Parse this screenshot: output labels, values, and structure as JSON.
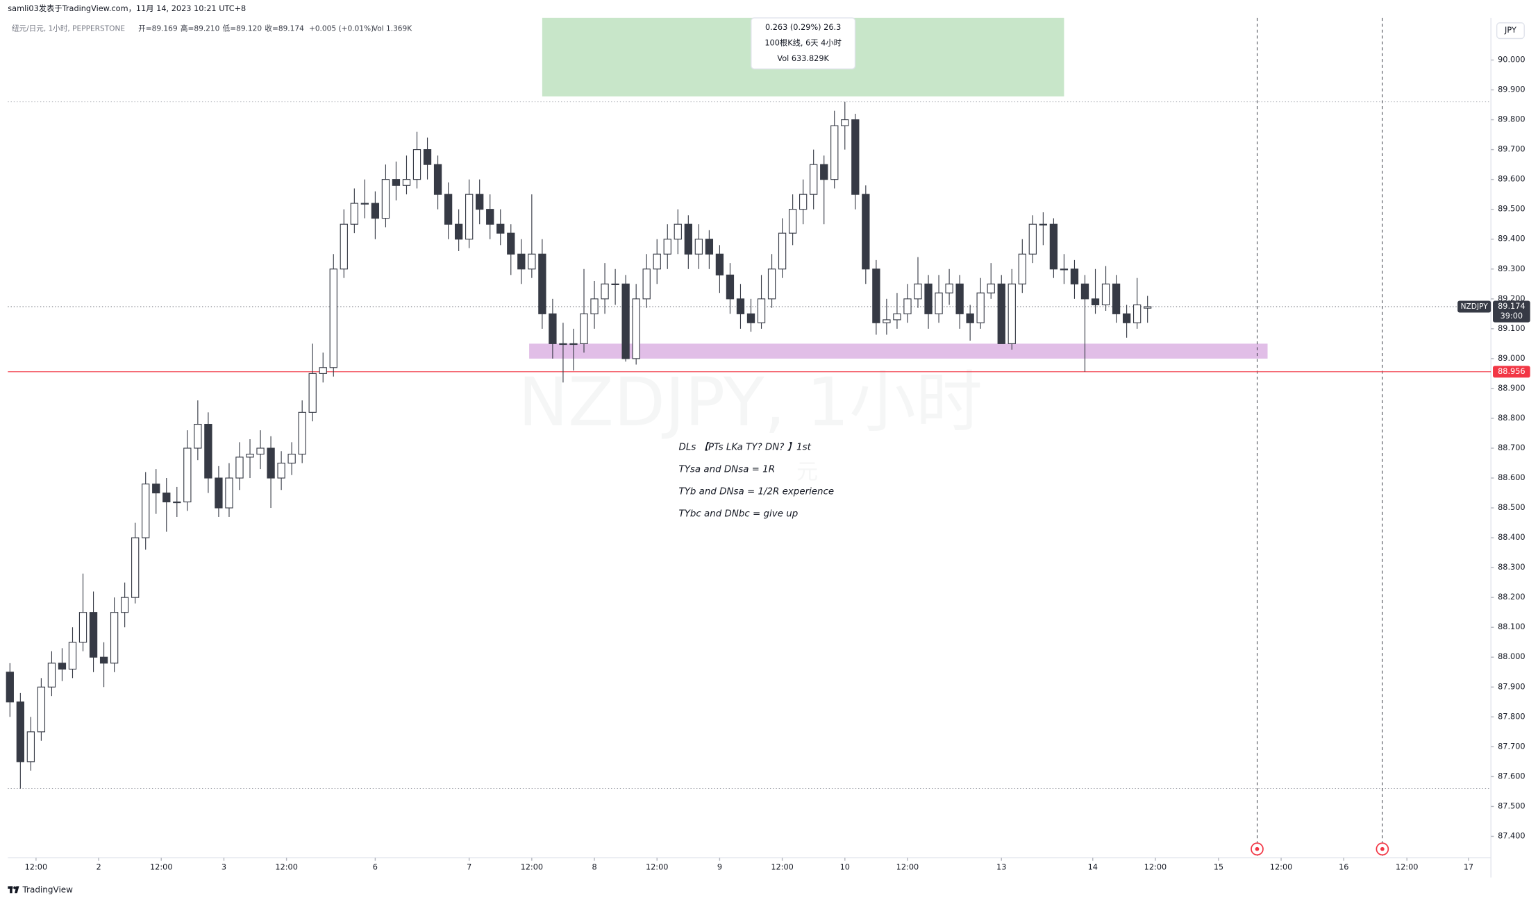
{
  "header": {
    "publisher": "samli03发表于TradingView.com，11月 14, 2023 10:21 UTC+8",
    "symbol_line": "纽元/日元, 1小时, PEPPERSTONE",
    "open_label": "开=89.169",
    "high_label": "高=89.210",
    "low_label": "低=89.120",
    "close_label": "收=89.174",
    "change": "+0.005 (+0.01%)",
    "volume": "Vol 1.369K"
  },
  "chart_data": {
    "type": "candlestick",
    "watermark": "NZDJPY, 1小时",
    "watermark_sub": "元",
    "currency": "JPY",
    "symbol": "NZDJPY",
    "countdown": "39:00",
    "bull_color": "#ffffff",
    "bear_color": "#363a45",
    "x": [
      0,
      2,
      4,
      6,
      8,
      10,
      12,
      14,
      16,
      18,
      20,
      22,
      24,
      26,
      28,
      30,
      32,
      34,
      36,
      38,
      40,
      42,
      44,
      46,
      48,
      50,
      52,
      54,
      56,
      58,
      60,
      62,
      64,
      66,
      68,
      70,
      72,
      74,
      76,
      78,
      80,
      82,
      84,
      86,
      88,
      90,
      92,
      94,
      96,
      98,
      100,
      102,
      104,
      106,
      108,
      110,
      112,
      114,
      116,
      118,
      120,
      122,
      124,
      126,
      128,
      130,
      132,
      134,
      136,
      138,
      140,
      142,
      144,
      146,
      148,
      150,
      152,
      154,
      156,
      158,
      160,
      162,
      164,
      166,
      168,
      170,
      172,
      174,
      176,
      178,
      180,
      182,
      184,
      186,
      188,
      190,
      192,
      194,
      196,
      198,
      200,
      202,
      204,
      206,
      208,
      210,
      212,
      214,
      216,
      218
    ],
    "ohlc": [
      [
        87.95,
        87.98,
        87.8,
        87.85
      ],
      [
        87.85,
        87.88,
        87.56,
        87.65
      ],
      [
        87.65,
        87.8,
        87.62,
        87.75
      ],
      [
        87.75,
        87.93,
        87.72,
        87.9
      ],
      [
        87.9,
        88.02,
        87.87,
        87.98
      ],
      [
        87.98,
        88.03,
        87.92,
        87.96
      ],
      [
        87.96,
        88.1,
        87.93,
        88.05
      ],
      [
        88.05,
        88.28,
        88.02,
        88.15
      ],
      [
        88.15,
        88.22,
        87.95,
        88.0
      ],
      [
        88.0,
        88.05,
        87.9,
        87.98
      ],
      [
        87.98,
        88.2,
        87.95,
        88.15
      ],
      [
        88.15,
        88.25,
        88.1,
        88.2
      ],
      [
        88.2,
        88.45,
        88.18,
        88.4
      ],
      [
        88.4,
        88.62,
        88.36,
        88.58
      ],
      [
        88.58,
        88.63,
        88.48,
        88.55
      ],
      [
        88.55,
        88.6,
        88.42,
        88.52
      ],
      [
        88.52,
        88.57,
        88.47,
        88.52
      ],
      [
        88.52,
        88.76,
        88.49,
        88.7
      ],
      [
        88.7,
        88.86,
        88.66,
        88.78
      ],
      [
        88.78,
        88.82,
        88.55,
        88.6
      ],
      [
        88.6,
        88.64,
        88.47,
        88.5
      ],
      [
        88.5,
        88.65,
        88.47,
        88.6
      ],
      [
        88.6,
        88.72,
        88.56,
        88.67
      ],
      [
        88.67,
        88.73,
        88.6,
        88.68
      ],
      [
        88.68,
        88.76,
        88.63,
        88.7
      ],
      [
        88.7,
        88.74,
        88.5,
        88.6
      ],
      [
        88.6,
        88.69,
        88.56,
        88.65
      ],
      [
        88.65,
        88.72,
        88.61,
        88.68
      ],
      [
        88.68,
        88.86,
        88.65,
        88.82
      ],
      [
        88.82,
        89.05,
        88.79,
        88.95
      ],
      [
        88.95,
        89.02,
        88.92,
        88.97
      ],
      [
        88.97,
        89.35,
        88.94,
        89.3
      ],
      [
        89.3,
        89.5,
        89.27,
        89.45
      ],
      [
        89.45,
        89.57,
        89.42,
        89.52
      ],
      [
        89.52,
        89.6,
        89.47,
        89.52
      ],
      [
        89.52,
        89.56,
        89.4,
        89.47
      ],
      [
        89.47,
        89.65,
        89.44,
        89.6
      ],
      [
        89.6,
        89.66,
        89.53,
        89.58
      ],
      [
        89.58,
        89.68,
        89.55,
        89.6
      ],
      [
        89.6,
        89.76,
        89.57,
        89.7
      ],
      [
        89.7,
        89.74,
        89.6,
        89.65
      ],
      [
        89.65,
        89.68,
        89.5,
        89.55
      ],
      [
        89.55,
        89.59,
        89.4,
        89.45
      ],
      [
        89.45,
        89.5,
        89.36,
        89.4
      ],
      [
        89.4,
        89.6,
        89.37,
        89.55
      ],
      [
        89.55,
        89.6,
        89.45,
        89.5
      ],
      [
        89.5,
        89.55,
        89.4,
        89.45
      ],
      [
        89.45,
        89.5,
        89.38,
        89.42
      ],
      [
        89.42,
        89.45,
        89.28,
        89.35
      ],
      [
        89.35,
        89.4,
        89.25,
        89.3
      ],
      [
        89.3,
        89.55,
        89.27,
        89.35
      ],
      [
        89.35,
        89.4,
        89.1,
        89.15
      ],
      [
        89.15,
        89.2,
        89.0,
        89.05
      ],
      [
        89.05,
        89.12,
        88.92,
        89.05
      ],
      [
        89.05,
        89.1,
        88.96,
        89.05
      ],
      [
        89.05,
        89.3,
        89.02,
        89.15
      ],
      [
        89.15,
        89.26,
        89.1,
        89.2
      ],
      [
        89.2,
        89.32,
        89.15,
        89.25
      ],
      [
        89.25,
        89.3,
        89.18,
        89.25
      ],
      [
        89.25,
        89.28,
        88.99,
        89.0
      ],
      [
        89.0,
        89.25,
        88.98,
        89.2
      ],
      [
        89.2,
        89.35,
        89.17,
        89.3
      ],
      [
        89.3,
        89.4,
        89.25,
        89.35
      ],
      [
        89.35,
        89.45,
        89.3,
        89.4
      ],
      [
        89.4,
        89.5,
        89.35,
        89.45
      ],
      [
        89.45,
        89.48,
        89.3,
        89.35
      ],
      [
        89.35,
        89.45,
        89.3,
        89.4
      ],
      [
        89.4,
        89.43,
        89.3,
        89.35
      ],
      [
        89.35,
        89.38,
        89.22,
        89.28
      ],
      [
        89.28,
        89.32,
        89.15,
        89.2
      ],
      [
        89.2,
        89.25,
        89.1,
        89.15
      ],
      [
        89.15,
        89.2,
        89.09,
        89.12
      ],
      [
        89.12,
        89.28,
        89.1,
        89.2
      ],
      [
        89.2,
        89.35,
        89.17,
        89.3
      ],
      [
        89.3,
        89.47,
        89.27,
        89.42
      ],
      [
        89.42,
        89.55,
        89.38,
        89.5
      ],
      [
        89.5,
        89.6,
        89.45,
        89.55
      ],
      [
        89.55,
        89.7,
        89.5,
        89.65
      ],
      [
        89.65,
        89.68,
        89.45,
        89.6
      ],
      [
        89.6,
        89.83,
        89.57,
        89.78
      ],
      [
        89.78,
        89.86,
        89.7,
        89.8
      ],
      [
        89.8,
        89.82,
        89.5,
        89.55
      ],
      [
        89.55,
        89.58,
        89.25,
        89.3
      ],
      [
        89.3,
        89.33,
        89.08,
        89.12
      ],
      [
        89.12,
        89.2,
        89.08,
        89.13
      ],
      [
        89.13,
        89.22,
        89.1,
        89.15
      ],
      [
        89.15,
        89.25,
        89.12,
        89.2
      ],
      [
        89.2,
        89.34,
        89.17,
        89.25
      ],
      [
        89.25,
        89.28,
        89.1,
        89.15
      ],
      [
        89.15,
        89.28,
        89.12,
        89.22
      ],
      [
        89.22,
        89.3,
        89.18,
        89.25
      ],
      [
        89.25,
        89.28,
        89.1,
        89.15
      ],
      [
        89.15,
        89.18,
        89.06,
        89.12
      ],
      [
        89.12,
        89.27,
        89.1,
        89.22
      ],
      [
        89.22,
        89.32,
        89.2,
        89.25
      ],
      [
        89.25,
        89.28,
        89.05,
        89.05
      ],
      [
        89.05,
        89.3,
        89.03,
        89.25
      ],
      [
        89.25,
        89.4,
        89.22,
        89.35
      ],
      [
        89.35,
        89.48,
        89.32,
        89.45
      ],
      [
        89.45,
        89.49,
        89.38,
        89.45
      ],
      [
        89.45,
        89.47,
        89.27,
        89.3
      ],
      [
        89.3,
        89.35,
        89.25,
        89.3
      ],
      [
        89.3,
        89.33,
        89.2,
        89.25
      ],
      [
        89.25,
        89.28,
        88.956,
        89.2
      ],
      [
        89.2,
        89.3,
        89.15,
        89.18
      ],
      [
        89.18,
        89.31,
        89.16,
        89.25
      ],
      [
        89.25,
        89.28,
        89.12,
        89.15
      ],
      [
        89.15,
        89.18,
        89.07,
        89.12
      ],
      [
        89.12,
        89.27,
        89.1,
        89.18
      ],
      [
        89.169,
        89.21,
        89.12,
        89.174
      ]
    ],
    "xlim": [
      -0.4,
      283.8
    ],
    "ylim": [
      87.328,
      90.141
    ],
    "xticks": [
      {
        "value": 5,
        "label": "12:00"
      },
      {
        "value": 17,
        "label": "2"
      },
      {
        "value": 29,
        "label": "12:00"
      },
      {
        "value": 41,
        "label": "3"
      },
      {
        "value": 53,
        "label": "12:00"
      },
      {
        "value": 70,
        "label": "6"
      },
      {
        "value": 88,
        "label": "7"
      },
      {
        "value": 100,
        "label": "12:00"
      },
      {
        "value": 112,
        "label": "8"
      },
      {
        "value": 124,
        "label": "12:00"
      },
      {
        "value": 136,
        "label": "9"
      },
      {
        "value": 148,
        "label": "12:00"
      },
      {
        "value": 160,
        "label": "10"
      },
      {
        "value": 172,
        "label": "12:00"
      },
      {
        "value": 190,
        "label": "13"
      },
      {
        "value": 207.5,
        "label": "14"
      },
      {
        "value": 219.5,
        "label": "12:00"
      },
      {
        "value": 231.6,
        "label": "15"
      },
      {
        "value": 243.6,
        "label": "12:00"
      },
      {
        "value": 255.6,
        "label": "16"
      },
      {
        "value": 267.7,
        "label": "12:00"
      },
      {
        "value": 279.5,
        "label": "17"
      }
    ],
    "yticks": [
      {
        "value": 90.0,
        "label": "90.000"
      },
      {
        "value": 89.9,
        "label": "89.900"
      },
      {
        "value": 89.8,
        "label": "89.800"
      },
      {
        "value": 89.7,
        "label": "89.700"
      },
      {
        "value": 89.6,
        "label": "89.600"
      },
      {
        "value": 89.5,
        "label": "89.500"
      },
      {
        "value": 89.4,
        "label": "89.400"
      },
      {
        "value": 89.3,
        "label": "89.300"
      },
      {
        "value": 89.2,
        "label": "89.200"
      },
      {
        "value": 89.1,
        "label": "89.100"
      },
      {
        "value": 89.0,
        "label": "89.000"
      },
      {
        "value": 88.9,
        "label": "88.900"
      },
      {
        "value": 88.8,
        "label": "88.800"
      },
      {
        "value": 88.7,
        "label": "88.700"
      },
      {
        "value": 88.6,
        "label": "88.600"
      },
      {
        "value": 88.5,
        "label": "88.500"
      },
      {
        "value": 88.4,
        "label": "88.400"
      },
      {
        "value": 88.3,
        "label": "88.300"
      },
      {
        "value": 88.2,
        "label": "88.200"
      },
      {
        "value": 88.1,
        "label": "88.100"
      },
      {
        "value": 88.0,
        "label": "88.000"
      },
      {
        "value": 87.9,
        "label": "87.900"
      },
      {
        "value": 87.8,
        "label": "87.800"
      },
      {
        "value": 87.7,
        "label": "87.700"
      },
      {
        "value": 87.6,
        "label": "87.600"
      },
      {
        "value": 87.5,
        "label": "87.500"
      },
      {
        "value": 87.4,
        "label": "87.400"
      }
    ],
    "current_price": {
      "value": 89.174,
      "label": "89.174"
    },
    "alert_line": {
      "value": 88.956,
      "label": "88.956",
      "color": "#f23645"
    },
    "h_lines": [
      89.86,
      87.56
    ],
    "v_lines": [
      239,
      263
    ],
    "zone": {
      "x": [
        99.5,
        241
      ],
      "y": [
        89.0,
        89.05
      ],
      "color": "#e1bee7"
    },
    "measure": {
      "x": [
        102,
        202
      ],
      "y": [
        89.878,
        90.141
      ],
      "color": "#c8e6c9",
      "lines": [
        "0.263 (0.29%) 26.3",
        "100根K线, 6天 4小时",
        "Vol 633.829K"
      ]
    },
    "notes": [
      "DLs 【PTs LKa TY? DN? 】1st",
      "TYsa and DNsa = 1R",
      "TYb and DNsa = 1/2R experience",
      "TYbc and DNbc = give up"
    ]
  },
  "footer": {
    "brand": "TradingView"
  }
}
